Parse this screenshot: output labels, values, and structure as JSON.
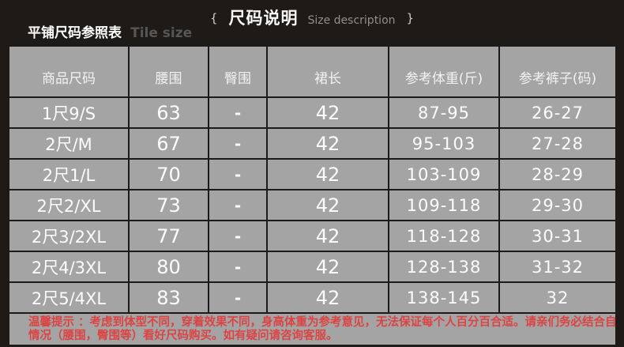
{
  "header": {
    "brace_left": "{",
    "title_zh": "尺码说明",
    "title_en": "Size description",
    "brace_right": "}",
    "subtitle_zh": "平铺尺码参照表",
    "subtitle_en": "Tile size"
  },
  "table": {
    "columns": [
      "商品尺码",
      "腰围",
      "臀围",
      "裙长",
      "参考体重(斤)",
      "参考裤子(码)"
    ],
    "rows": [
      [
        "1尺9/S",
        "63",
        "-",
        "42",
        "87-95",
        "26-27"
      ],
      [
        "2尺/M",
        "67",
        "-",
        "42",
        "95-103",
        "27-28"
      ],
      [
        "2尺1/L",
        "70",
        "-",
        "42",
        "103-109",
        "28-29"
      ],
      [
        "2尺2/XL",
        "73",
        "-",
        "42",
        "109-118",
        "29-30"
      ],
      [
        "2尺3/2XL",
        "77",
        "-",
        "42",
        "118-128",
        "30-31"
      ],
      [
        "2尺4/3XL",
        "80",
        "-",
        "42",
        "128-138",
        "31-32"
      ],
      [
        "2尺5/4XL",
        "83",
        "-",
        "42",
        "138-145",
        "32"
      ]
    ]
  },
  "note": {
    "lines": [
      "温馨提示 ：考虑到体型不同，穿着效果不同，身高体重为参考意见，无法保证每个人百分百合适。请亲们务必结合自身",
      "情况（腰围，臀围等）看好尺码购买。如有疑问请咨询客服。"
    ]
  },
  "colors": {
    "page_background": "#1e1a17",
    "cell_background": "#a4a4a4",
    "cell_border": "#1e1a17",
    "table_text": "#fdfdfd",
    "header_text": "#f2f2f2",
    "title_text": "#f7f7f7",
    "muted_text": "#8f8f8f",
    "subtitle_muted": "#565656",
    "note_red": "#dd4343"
  }
}
